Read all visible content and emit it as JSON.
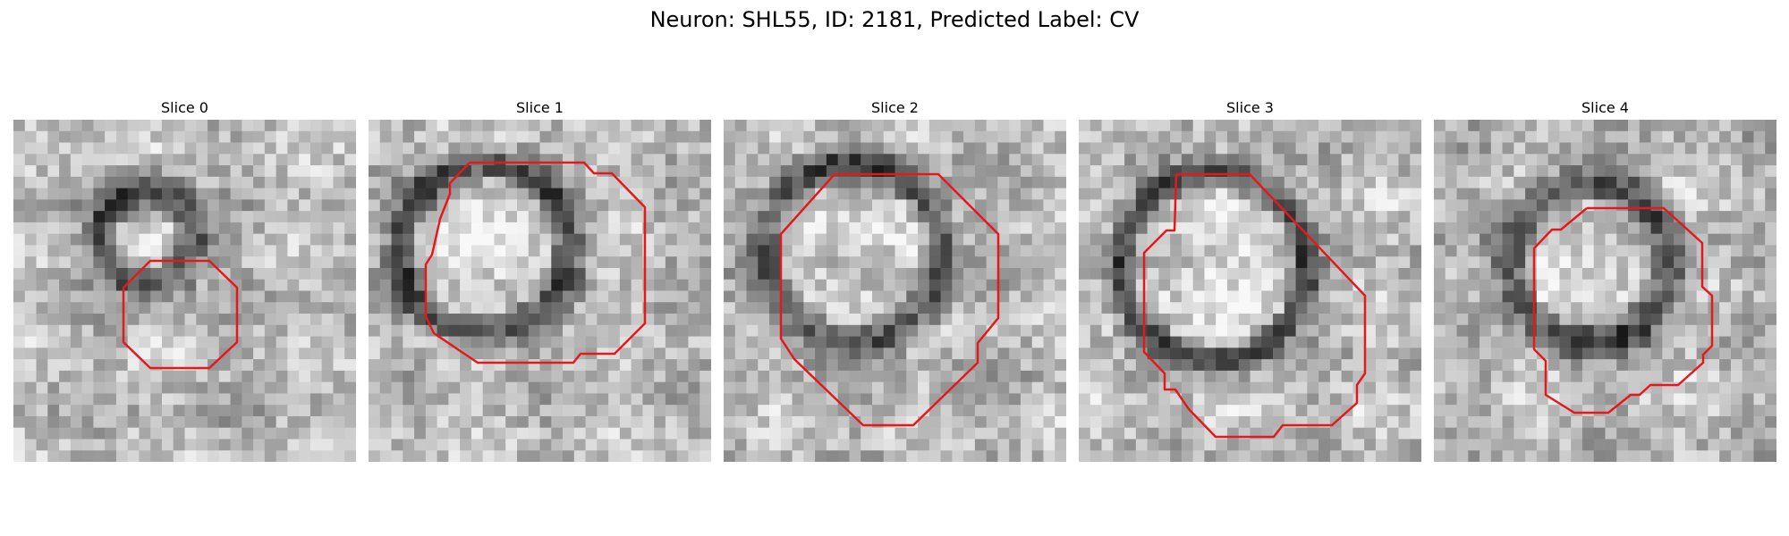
{
  "figure": {
    "title": "Neuron: SHL55, ID: 2181, Predicted Label: CV"
  },
  "panels": [
    {
      "title": "Slice 0"
    },
    {
      "title": "Slice 1"
    },
    {
      "title": "Slice 2"
    },
    {
      "title": "Slice 3"
    },
    {
      "title": "Slice 4"
    }
  ],
  "colors": {
    "contour": "#e31a1c"
  }
}
